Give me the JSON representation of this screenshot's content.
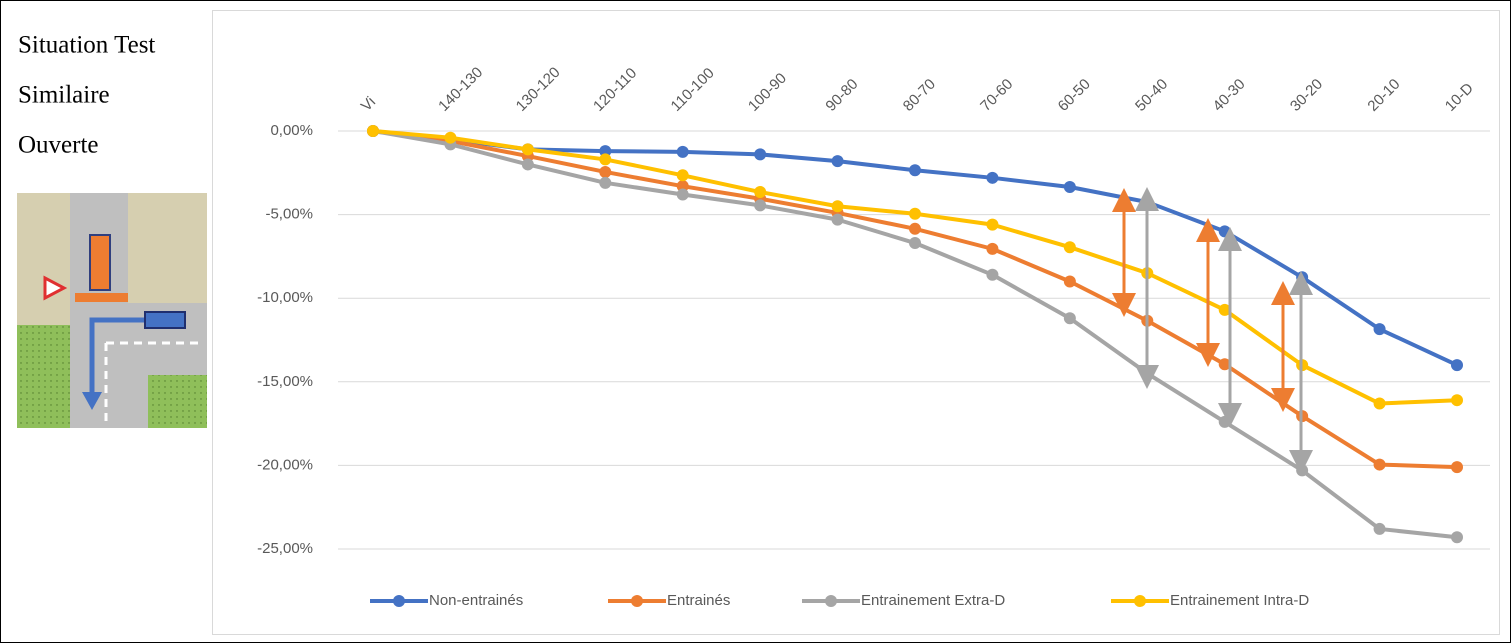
{
  "side_panel": {
    "lines": [
      "Situation Test",
      "Similaire",
      "Ouverte"
    ]
  },
  "chart_data": {
    "type": "line",
    "categories": [
      "Vi",
      "140-130",
      "130-120",
      "120-110",
      "110-100",
      "100-90",
      "90-80",
      "80-70",
      "70-60",
      "60-50",
      "50-40",
      "40-30",
      "30-20",
      "20-10",
      "10-D"
    ],
    "series": [
      {
        "name": "Non-entrainés",
        "color": "#4472c4",
        "values": [
          0,
          -0.5,
          -1.1,
          -1.2,
          -1.25,
          -1.4,
          -1.8,
          -2.35,
          -2.8,
          -3.35,
          -4.25,
          -6.0,
          -8.75,
          -11.85,
          -14.0
        ]
      },
      {
        "name": "Entrainés",
        "color": "#ed7d31",
        "values": [
          0,
          -0.6,
          -1.5,
          -2.45,
          -3.3,
          -4.05,
          -4.9,
          -5.85,
          -7.05,
          -9.0,
          -11.35,
          -13.95,
          -17.05,
          -19.95,
          -20.1
        ]
      },
      {
        "name": "Entrainement Extra-D",
        "color": "#a5a5a5",
        "values": [
          0,
          -0.8,
          -2.0,
          -3.1,
          -3.8,
          -4.45,
          -5.3,
          -6.7,
          -8.6,
          -11.2,
          -14.5,
          -17.4,
          -20.3,
          -23.8,
          -24.3
        ]
      },
      {
        "name": "Entrainement Intra-D",
        "color": "#ffc000",
        "values": [
          0,
          -0.4,
          -1.1,
          -1.7,
          -2.65,
          -3.65,
          -4.5,
          -4.95,
          -5.6,
          -6.95,
          -8.5,
          -10.7,
          -14.0,
          -16.3,
          -16.1
        ]
      }
    ],
    "ylim": [
      -25,
      0
    ],
    "yticks": [
      {
        "value": 0,
        "label": "0,00%"
      },
      {
        "value": -5,
        "label": "-5,00%"
      },
      {
        "value": -10,
        "label": "-10,00%"
      },
      {
        "value": -15,
        "label": "-15,00%"
      },
      {
        "value": -20,
        "label": "-20,00%"
      },
      {
        "value": -25,
        "label": "-25,00%"
      }
    ],
    "grid": true,
    "legend": "bottom"
  }
}
